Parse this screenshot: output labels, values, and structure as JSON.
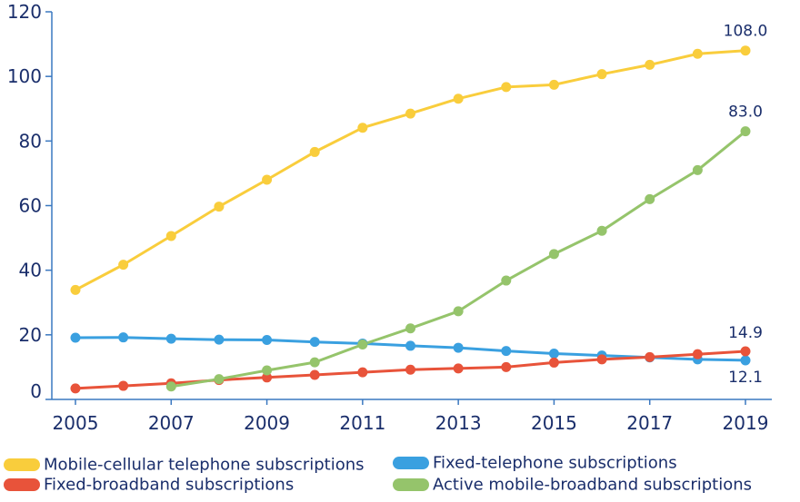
{
  "chart_data": {
    "type": "line",
    "title": "",
    "xlabel": "",
    "ylabel": "",
    "x": [
      2005,
      2006,
      2007,
      2008,
      2009,
      2010,
      2011,
      2012,
      2013,
      2014,
      2015,
      2016,
      2017,
      2018,
      2019
    ],
    "xticks": [
      "2005",
      "2007",
      "2009",
      "2011",
      "2013",
      "2015",
      "2017",
      "2019"
    ],
    "yticks": [
      "0",
      "20",
      "40",
      "60",
      "80",
      "100",
      "120"
    ],
    "xlim": [
      2005,
      2019
    ],
    "ylim": [
      0,
      120
    ],
    "grid": false,
    "legend_position": "bottom",
    "series": [
      {
        "name": "Mobile-cellular telephone subscriptions",
        "color": "#f9cd3c",
        "values": [
          33.9,
          41.7,
          50.6,
          59.7,
          68.0,
          76.6,
          84.1,
          88.5,
          93.1,
          96.7,
          97.4,
          100.7,
          103.6,
          107.0,
          108.0
        ],
        "end_label": "108.0"
      },
      {
        "name": "Fixed-telephone subscriptions",
        "color": "#3aa0e0",
        "values": [
          19.1,
          19.2,
          18.8,
          18.5,
          18.4,
          17.8,
          17.3,
          16.6,
          16.0,
          15.0,
          14.2,
          13.6,
          13.0,
          12.4,
          12.1
        ],
        "end_label": "12.1"
      },
      {
        "name": "Fixed-broadband subscriptions",
        "color": "#e8533a",
        "values": [
          3.4,
          4.2,
          5.0,
          6.0,
          6.8,
          7.6,
          8.4,
          9.2,
          9.6,
          10.0,
          11.4,
          12.4,
          13.1,
          14.0,
          14.9
        ],
        "end_label": "14.9"
      },
      {
        "name": "Active mobile-broadband subscriptions",
        "color": "#95c46b",
        "values": [
          null,
          null,
          4.0,
          6.3,
          9.0,
          11.5,
          17.0,
          22.0,
          27.3,
          36.8,
          45.0,
          52.2,
          62.0,
          71.0,
          83.0
        ],
        "end_label": "83.0"
      }
    ]
  }
}
